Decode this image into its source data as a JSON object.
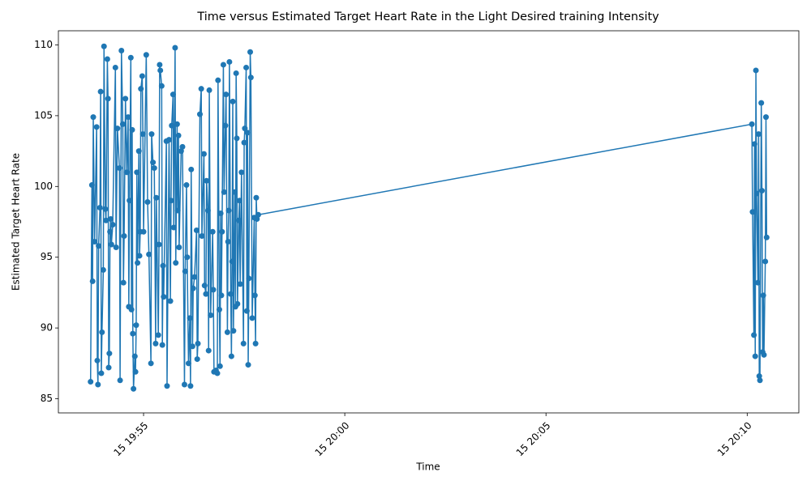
{
  "chart_data": {
    "type": "line",
    "title": "Time versus Estimated Target Heart Rate in the Light Desired training Intensity",
    "x_label": "Time",
    "y_label": "Estimated Target Heart Rate",
    "x": [
      "15 19:53:41",
      "15 19:53:43",
      "15 19:53:44",
      "15 19:53:45",
      "15 19:53:47",
      "15 19:53:50",
      "15 19:53:51",
      "15 19:53:52",
      "15 19:53:53",
      "15 19:53:55",
      "15 19:53:56",
      "15 19:53:57",
      "15 19:53:58",
      "15 19:54:00",
      "15 19:54:01",
      "15 19:54:03",
      "15 19:54:04",
      "15 19:54:06",
      "15 19:54:07",
      "15 19:54:08",
      "15 19:54:09",
      "15 19:54:10",
      "15 19:54:11",
      "15 19:54:12",
      "15 19:54:14",
      "15 19:54:18",
      "15 19:54:19",
      "15 19:54:21",
      "15 19:54:24",
      "15 19:54:25",
      "15 19:54:27",
      "15 19:54:29",
      "15 19:54:30",
      "15 19:54:31",
      "15 19:54:33",
      "15 19:54:35",
      "15 19:54:37",
      "15 19:54:38",
      "15 19:54:39",
      "15 19:54:41",
      "15 19:54:42",
      "15 19:54:43",
      "15 19:54:44",
      "15 19:54:45",
      "15 19:54:47",
      "15 19:54:48",
      "15 19:54:49",
      "15 19:54:50",
      "15 19:54:51",
      "15 19:54:53",
      "15 19:54:54",
      "15 19:54:55",
      "15 19:54:56",
      "15 19:54:58",
      "15 19:54:59",
      "15 19:55:00",
      "15 19:55:04",
      "15 19:55:06",
      "15 19:55:08",
      "15 19:55:11",
      "15 19:55:12",
      "15 19:55:14",
      "15 19:55:16",
      "15 19:55:18",
      "15 19:55:19",
      "15 19:55:22",
      "15 19:55:23",
      "15 19:55:24",
      "15 19:55:25",
      "15 19:55:27",
      "15 19:55:28",
      "15 19:55:29",
      "15 19:55:30",
      "15 19:55:34",
      "15 19:55:35",
      "15 19:55:38",
      "15 19:55:40",
      "15 19:55:41",
      "15 19:55:42",
      "15 19:55:44",
      "15 19:55:45",
      "15 19:55:47",
      "15 19:55:48",
      "15 19:55:50",
      "15 19:55:51",
      "15 19:55:52",
      "15 19:55:53",
      "15 19:55:56",
      "15 19:55:58",
      "15 19:56:01",
      "15 19:56:02",
      "15 19:56:04",
      "15 19:56:05",
      "15 19:56:07",
      "15 19:56:09",
      "15 19:56:10",
      "15 19:56:11",
      "15 19:56:13",
      "15 19:56:14",
      "15 19:56:16",
      "15 19:56:19",
      "15 19:56:20",
      "15 19:56:21",
      "15 19:56:24",
      "15 19:56:26",
      "15 19:56:27",
      "15 19:56:30",
      "15 19:56:31",
      "15 19:56:33",
      "15 19:56:34",
      "15 19:56:36",
      "15 19:56:37",
      "15 19:56:38",
      "15 19:56:40",
      "15 19:56:43",
      "15 19:56:44",
      "15 19:56:45",
      "15 19:56:48",
      "15 19:56:50",
      "15 19:56:51",
      "15 19:56:53",
      "15 19:56:54",
      "15 19:56:55",
      "15 19:56:56",
      "15 19:56:57",
      "15 19:56:59",
      "15 19:57:00",
      "15 19:57:02",
      "15 19:57:03",
      "15 19:57:05",
      "15 19:57:06",
      "15 19:57:07",
      "15 19:57:08",
      "15 19:57:10",
      "15 19:57:11",
      "15 19:57:12",
      "15 19:57:13",
      "15 19:57:14",
      "15 19:57:16",
      "15 19:57:17",
      "15 19:57:18",
      "15 19:57:19",
      "15 19:57:20",
      "15 19:57:22",
      "15 19:57:23",
      "15 19:57:24",
      "15 19:57:26",
      "15 19:57:29",
      "15 19:57:30",
      "15 19:57:31",
      "15 19:57:33",
      "15 19:57:34",
      "15 19:57:35",
      "15 19:57:36",
      "15 19:57:37",
      "15 19:57:39",
      "15 19:57:40",
      "15 19:57:42",
      "15 19:57:45",
      "15 19:57:46",
      "15 19:57:47",
      "15 19:57:48",
      "15 19:57:49",
      "15 19:57:51",
      "15 20:10:07",
      "15 20:10:08",
      "15 20:10:10",
      "15 20:10:11",
      "15 20:10:12",
      "15 20:10:13",
      "15 20:10:14",
      "15 20:10:16",
      "15 20:10:17",
      "15 20:10:18",
      "15 20:10:19",
      "15 20:10:21",
      "15 20:10:22",
      "15 20:10:23",
      "15 20:10:24",
      "15 20:10:25",
      "15 20:10:27",
      "15 20:10:28",
      "15 20:10:29"
    ],
    "values": [
      86.2,
      100.1,
      93.3,
      104.9,
      96.1,
      104.2,
      87.7,
      86.0,
      95.8,
      98.5,
      106.7,
      86.8,
      89.7,
      94.1,
      109.9,
      98.4,
      97.6,
      109.0,
      106.2,
      87.2,
      88.2,
      96.8,
      97.7,
      95.9,
      97.3,
      108.4,
      95.7,
      104.1,
      101.3,
      86.3,
      109.6,
      104.4,
      93.2,
      96.5,
      106.2,
      101.0,
      104.9,
      91.5,
      99.0,
      109.1,
      91.3,
      104.0,
      89.6,
      85.7,
      88.0,
      86.9,
      90.2,
      101.0,
      94.6,
      102.5,
      95.1,
      96.8,
      106.9,
      107.8,
      103.7,
      96.8,
      109.3,
      98.9,
      95.2,
      87.5,
      103.7,
      101.7,
      101.3,
      88.9,
      99.2,
      89.5,
      95.9,
      108.6,
      108.2,
      107.1,
      88.8,
      94.4,
      92.2,
      103.2,
      85.9,
      103.3,
      91.9,
      99.0,
      104.3,
      106.5,
      97.1,
      109.8,
      94.6,
      104.4,
      98.3,
      103.6,
      95.7,
      102.5,
      102.8,
      86.0,
      94.0,
      100.1,
      95.0,
      87.5,
      90.7,
      85.9,
      101.2,
      88.7,
      92.8,
      93.6,
      96.9,
      87.8,
      88.9,
      105.1,
      106.9,
      96.5,
      102.3,
      93.0,
      92.4,
      100.4,
      98.3,
      88.4,
      106.8,
      90.9,
      96.8,
      92.7,
      86.9,
      87.0,
      86.8,
      107.5,
      91.3,
      87.3,
      98.1,
      92.3,
      96.8,
      108.6,
      99.6,
      104.3,
      106.5,
      89.7,
      96.1,
      98.3,
      108.8,
      92.4,
      88.0,
      94.7,
      106.0,
      89.8,
      99.6,
      91.5,
      108.0,
      103.4,
      91.7,
      97.6,
      99.0,
      93.1,
      101.0,
      88.9,
      103.1,
      104.1,
      108.4,
      91.2,
      103.8,
      87.4,
      93.5,
      109.5,
      107.7,
      90.7,
      97.8,
      92.3,
      88.9,
      99.2,
      97.7,
      98.0,
      104.4,
      98.2,
      89.5,
      103.0,
      88.0,
      108.2,
      99.5,
      93.2,
      103.7,
      86.6,
      86.3,
      105.9,
      99.7,
      88.3,
      92.3,
      88.1,
      94.7,
      104.9,
      96.4
    ],
    "color": "#1f77b4",
    "xlim": [
      "15 19:52:53",
      "15 20:11:17"
    ],
    "xticks": [
      "15 19:55",
      "15 20:00",
      "15 20:05",
      "15 20:10"
    ],
    "ylim": [
      84,
      111
    ],
    "yticks": [
      85,
      90,
      95,
      100,
      105,
      110
    ]
  }
}
